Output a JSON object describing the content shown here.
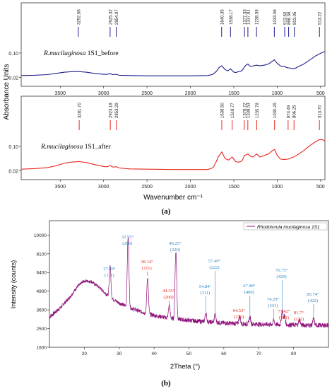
{
  "panel_a": {
    "label": "(a)",
    "ylabel": "Absorbance Units",
    "xlabel": "Wavenumber cm⁻¹",
    "chart_data": [
      {
        "type": "line",
        "title": "R.mucilaginosa 1S1_before",
        "title_italic": "R.mucilaginosa",
        "title_rest": " 1S1_before",
        "color": "#1f1f8a",
        "xlim": [
          3950,
          450
        ],
        "ylim": [
          0.0,
          0.13
        ],
        "xticks": [
          3500,
          3000,
          2500,
          2000,
          1500,
          1000,
          500
        ],
        "yticks": [
          0.02,
          0.1
        ],
        "ytick_labels": [
          "0.02",
          "0.10"
        ],
        "peaks": [
          3292.56,
          2925.32,
          2854.97,
          1640.35,
          1538.17,
          1377.33,
          1337.81,
          1238.59,
          1033.06,
          913.5,
          868.38,
          803.05,
          513.22
        ],
        "peak_labels": [
          "3292.56",
          "2925.32",
          "2854.97",
          "1640.35",
          "1538.17",
          "1377.33",
          "1337.81",
          "1238.59",
          "1033.06",
          "913.50",
          "868.38",
          "803.05",
          "513.22"
        ],
        "x": [
          3950,
          3800,
          3650,
          3550,
          3450,
          3350,
          3290,
          3200,
          3100,
          3000,
          2960,
          2925,
          2895,
          2855,
          2820,
          2700,
          2500,
          2200,
          2000,
          1800,
          1740,
          1700,
          1670,
          1640,
          1600,
          1570,
          1538,
          1500,
          1470,
          1450,
          1420,
          1400,
          1377,
          1360,
          1338,
          1320,
          1300,
          1270,
          1238,
          1200,
          1150,
          1100,
          1060,
          1033,
          1000,
          960,
          913,
          890,
          868,
          840,
          803,
          780,
          700,
          620,
          560,
          513,
          480,
          450
        ],
        "y": [
          0.026,
          0.027,
          0.029,
          0.033,
          0.037,
          0.039,
          0.039,
          0.037,
          0.033,
          0.03,
          0.03,
          0.032,
          0.029,
          0.03,
          0.027,
          0.026,
          0.025,
          0.025,
          0.025,
          0.026,
          0.03,
          0.04,
          0.052,
          0.058,
          0.046,
          0.041,
          0.048,
          0.037,
          0.036,
          0.039,
          0.04,
          0.044,
          0.055,
          0.06,
          0.064,
          0.058,
          0.056,
          0.058,
          0.06,
          0.058,
          0.06,
          0.064,
          0.072,
          0.078,
          0.066,
          0.057,
          0.056,
          0.052,
          0.051,
          0.05,
          0.048,
          0.052,
          0.063,
          0.078,
          0.09,
          0.097,
          0.102,
          0.104
        ]
      },
      {
        "type": "line",
        "title": "R.mucilaginosa 1S1_after",
        "title_italic": "R.mucilaginosa",
        "title_rest": " 1S1_after",
        "color": "#e8261e",
        "xlim": [
          3950,
          450
        ],
        "ylim": [
          0.0,
          0.13
        ],
        "xticks": [
          3500,
          3000,
          2500,
          2000,
          1500,
          1000,
          500
        ],
        "yticks": [
          0.02,
          0.1
        ],
        "ytick_labels": [
          "0.02",
          "0.10"
        ],
        "peaks": [
          3281.7,
          2923.18,
          2853.29,
          1638.5,
          1518.77,
          1378.72,
          1338.53,
          1235.78,
          1030.29,
          874.49,
          806.25,
          513.7
        ],
        "peak_labels": [
          "3281.70",
          "2923.18",
          "2853.29",
          "1638.50",
          "1518.77",
          "1378.72",
          "1338.53",
          "1235.78",
          "1030.29",
          "874.49",
          "806.25",
          "513.70"
        ],
        "x": [
          3950,
          3800,
          3650,
          3550,
          3450,
          3350,
          3280,
          3200,
          3100,
          3000,
          2960,
          2923,
          2895,
          2853,
          2820,
          2700,
          2500,
          2200,
          2000,
          1800,
          1740,
          1710,
          1680,
          1638,
          1600,
          1560,
          1519,
          1480,
          1450,
          1420,
          1400,
          1379,
          1360,
          1338,
          1310,
          1280,
          1236,
          1200,
          1150,
          1100,
          1060,
          1030,
          1000,
          960,
          920,
          874,
          840,
          806,
          780,
          700,
          620,
          560,
          514,
          480,
          450
        ],
        "y": [
          0.025,
          0.027,
          0.03,
          0.036,
          0.045,
          0.049,
          0.05,
          0.047,
          0.04,
          0.034,
          0.033,
          0.037,
          0.032,
          0.033,
          0.029,
          0.026,
          0.025,
          0.024,
          0.024,
          0.024,
          0.03,
          0.045,
          0.065,
          0.082,
          0.06,
          0.055,
          0.065,
          0.05,
          0.048,
          0.05,
          0.055,
          0.07,
          0.072,
          0.075,
          0.068,
          0.065,
          0.075,
          0.065,
          0.07,
          0.075,
          0.085,
          0.09,
          0.07,
          0.058,
          0.057,
          0.058,
          0.062,
          0.066,
          0.07,
          0.085,
          0.103,
          0.115,
          0.122,
          0.122,
          0.118
        ]
      }
    ]
  },
  "panel_b": {
    "label": "(b)",
    "chart_data": {
      "type": "line",
      "xlabel": "2Theta (°)",
      "ylabel": "Intensity (counts)",
      "legend": "Rhodotorula mucilaginosa 1S1",
      "legend_position": "top-right",
      "color": "#8e0f7a",
      "xlim": [
        10,
        90
      ],
      "ylim": [
        1600,
        11600
      ],
      "xticks": [
        20,
        30,
        40,
        50,
        60,
        70,
        80
      ],
      "yticks": [
        1600,
        2500,
        3600,
        4900,
        6400,
        8100,
        10000
      ],
      "peak_colors": {
        "blue": "#2e86c1",
        "red": "#e8261e"
      },
      "peaks": [
        {
          "angle": "27.39°",
          "hkl": "(111)",
          "x": 27.39,
          "color": "blue"
        },
        {
          "angle": "32.55°",
          "hkl": "(200)",
          "x": 32.55,
          "color": "blue"
        },
        {
          "angle": "38.14°",
          "hkl": "(111)",
          "x": 38.14,
          "color": "red"
        },
        {
          "angle": "44.35°",
          "hkl": "(200)",
          "x": 44.35,
          "color": "red"
        },
        {
          "angle": "46.25°",
          "hkl": "(220)",
          "x": 46.25,
          "color": "blue"
        },
        {
          "angle": "54.84°",
          "hkl": "(311)",
          "x": 54.84,
          "color": "blue"
        },
        {
          "angle": "57.49°",
          "hkl": "(222)",
          "x": 57.49,
          "color": "blue"
        },
        {
          "angle": "64.53°",
          "hkl": "(220)",
          "x": 64.53,
          "color": "red"
        },
        {
          "angle": "67.48°",
          "hkl": "(400)",
          "x": 67.48,
          "color": "blue"
        },
        {
          "angle": "74.29°",
          "hkl": "(331)",
          "x": 74.29,
          "color": "blue"
        },
        {
          "angle": "76.75°",
          "hkl": "(420)",
          "x": 76.75,
          "color": "blue"
        },
        {
          "angle": "77.42°",
          "hkl": "(331)",
          "x": 77.42,
          "color": "red"
        },
        {
          "angle": "81.7°",
          "hkl": "(222)",
          "x": 81.7,
          "color": "red"
        },
        {
          "angle": "85.74°",
          "hkl": "(422)",
          "x": 85.74,
          "color": "blue"
        }
      ],
      "baseline": {
        "x": [
          10,
          13,
          16,
          18,
          20,
          22,
          24,
          26,
          28,
          30,
          33,
          36,
          40,
          44,
          48,
          52,
          56,
          60,
          65,
          70,
          75,
          80,
          85,
          90
        ],
        "y": [
          3150,
          3700,
          4500,
          5250,
          5700,
          5650,
          5250,
          4750,
          4350,
          4050,
          3750,
          3500,
          3250,
          3100,
          3000,
          2920,
          2860,
          2810,
          2760,
          2740,
          2720,
          2700,
          2680,
          2680
        ]
      },
      "peak_intensities": [
        {
          "x": 27.39,
          "y": 7000
        },
        {
          "x": 32.55,
          "y": 9700
        },
        {
          "x": 38.14,
          "y": 6000
        },
        {
          "x": 44.35,
          "y": 3900
        },
        {
          "x": 46.25,
          "y": 8300
        },
        {
          "x": 54.84,
          "y": 3400
        },
        {
          "x": 57.49,
          "y": 3300
        },
        {
          "x": 64.53,
          "y": 3200
        },
        {
          "x": 67.48,
          "y": 3150
        },
        {
          "x": 74.29,
          "y": 2950
        },
        {
          "x": 76.75,
          "y": 3550
        },
        {
          "x": 77.42,
          "y": 3250
        },
        {
          "x": 81.7,
          "y": 3000
        },
        {
          "x": 85.74,
          "y": 3050
        }
      ]
    }
  }
}
